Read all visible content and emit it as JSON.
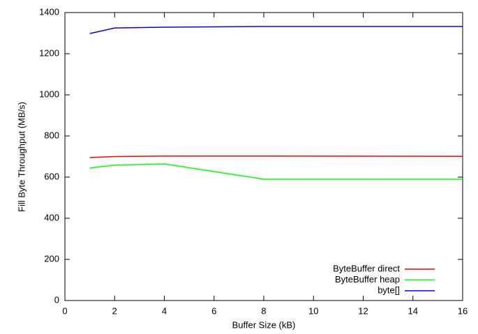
{
  "chart_data": {
    "type": "line",
    "x_label": "Buffer Size (kB)",
    "y_label": "Fill Byte Throughput (MB/s)",
    "x": [
      1,
      2,
      4,
      8,
      16
    ],
    "series": [
      {
        "name": "ByteBuffer direct",
        "color": "#ff0000",
        "values": [
          695,
          700,
          702,
          702,
          701
        ]
      },
      {
        "name": "ByteBuffer heap",
        "color": "#00ff00",
        "values": [
          644,
          658,
          664,
          590,
          590
        ]
      },
      {
        "name": "byte[]",
        "color": "#0000ff",
        "values": [
          1298,
          1325,
          1329,
          1332,
          1332
        ]
      }
    ],
    "xlim": [
      0,
      16
    ],
    "xticks": [
      0,
      2,
      4,
      6,
      8,
      10,
      12,
      14,
      16
    ],
    "ylim": [
      0,
      1400
    ],
    "yticks": [
      0,
      200,
      400,
      600,
      800,
      1000,
      1200,
      1400
    ],
    "legend": "bottom right"
  }
}
